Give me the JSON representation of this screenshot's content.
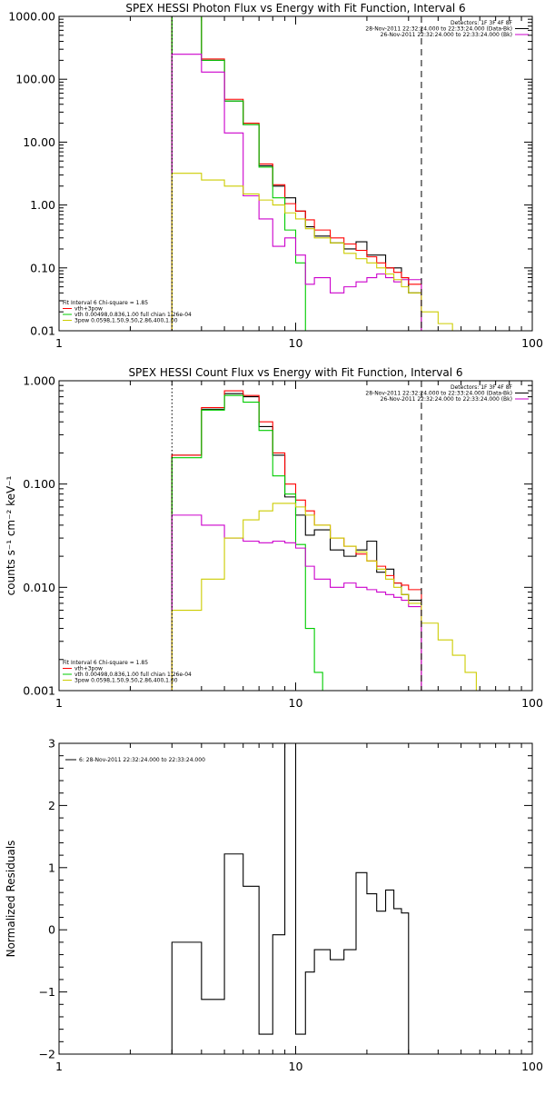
{
  "chart_data": [
    {
      "type": "line",
      "title": "SPEX HESSI Photon Flux vs Energy with Fit Function, Interval 6",
      "xscale": "log",
      "yscale": "log",
      "xlim": [
        1,
        100
      ],
      "ylim": [
        0.01,
        1000
      ],
      "xticks": [
        {
          "v": 1,
          "label": "1"
        },
        {
          "v": 10,
          "label": "10"
        },
        {
          "v": 100,
          "label": "100"
        }
      ],
      "yticks": [
        {
          "v": 0.01,
          "label": "0.01"
        },
        {
          "v": 0.1,
          "label": "0.10"
        },
        {
          "v": 1,
          "label": "1.00"
        },
        {
          "v": 10,
          "label": "10.00"
        },
        {
          "v": 100,
          "label": "100.00"
        },
        {
          "v": 1000,
          "label": "1000.00"
        }
      ],
      "vlines": [
        {
          "x": 3,
          "style": "dotted"
        },
        {
          "x": 34,
          "style": "dashed"
        }
      ],
      "legend_tr": [
        {
          "text": "Detectors: 1F 3F 4F 8F",
          "color": "",
          "line": false
        },
        {
          "text": "28-Nov-2011 22:32:24.000 to 22:33:24.000 (Data-Bk)",
          "color": "#000000",
          "line": true
        },
        {
          "text": "26-Nov-2011 22:32:24.000 to 22:33:24.000 (Bk)",
          "color": "#cc00cc",
          "line": true
        }
      ],
      "legend_bl": [
        {
          "text": "Fit Interval 6   Chi-square = 1.85",
          "color": "",
          "line": false
        },
        {
          "text": "vth+3pow",
          "color": "#ff0000",
          "line": true
        },
        {
          "text": "vth 0.00498,0.836,1.00  full chian 1.26e-04",
          "color": "#00cc00",
          "line": true
        },
        {
          "text": "3pow 0.0598,1.50,9.50,2.86,400,1.00",
          "color": "#cccc00",
          "line": true
        }
      ],
      "series": [
        {
          "color": "#000000",
          "edges": [
            3,
            4,
            5,
            6,
            7,
            8,
            9,
            10,
            11,
            12,
            14,
            16,
            18,
            20,
            22,
            24,
            26,
            28,
            30,
            34
          ],
          "values": [
            1000,
            200,
            45,
            19,
            4.2,
            2.0,
            1.3,
            0.8,
            0.45,
            0.32,
            0.25,
            0.2,
            0.26,
            0.16,
            0.16,
            0.1,
            0.1,
            0.07,
            0.04
          ]
        },
        {
          "color": "#ff0000",
          "edges": [
            3,
            4,
            5,
            6,
            7,
            8,
            9,
            10,
            11,
            12,
            14,
            16,
            18,
            20,
            22,
            24,
            26,
            28,
            30,
            34
          ],
          "values": [
            1000,
            210,
            48,
            20,
            4.5,
            2.1,
            1.05,
            0.8,
            0.58,
            0.4,
            0.3,
            0.24,
            0.19,
            0.15,
            0.12,
            0.1,
            0.085,
            0.07,
            0.055
          ]
        },
        {
          "color": "#00cc00",
          "edges": [
            3,
            4,
            5,
            6,
            7,
            8,
            9,
            10,
            11,
            12
          ],
          "values": [
            1000,
            200,
            45,
            19,
            4.0,
            1.3,
            0.4,
            0.12,
            0.01
          ]
        },
        {
          "color": "#cc00cc",
          "edges": [
            3,
            4,
            5,
            6,
            7,
            8,
            9,
            10,
            11,
            12,
            14,
            16,
            18,
            20,
            22,
            24,
            26,
            28,
            30,
            34
          ],
          "values": [
            250,
            130,
            14,
            1.4,
            0.6,
            0.22,
            0.3,
            0.16,
            0.055,
            0.07,
            0.04,
            0.05,
            0.06,
            0.07,
            0.08,
            0.07,
            0.06,
            0.065,
            0.065,
            0.006
          ]
        },
        {
          "color": "#cccc00",
          "edges": [
            3,
            4,
            5,
            6,
            7,
            8,
            9,
            10,
            11,
            12,
            14,
            16,
            18,
            20,
            22,
            24,
            26,
            28,
            30,
            34,
            40,
            46,
            50
          ],
          "values": [
            3.2,
            2.5,
            2.0,
            1.5,
            1.2,
            1.0,
            0.75,
            0.6,
            0.42,
            0.3,
            0.25,
            0.17,
            0.14,
            0.12,
            0.1,
            0.08,
            0.065,
            0.05,
            0.04,
            0.02,
            0.013,
            0.01
          ]
        }
      ]
    },
    {
      "type": "line",
      "title": "SPEX HESSI Count Flux vs Energy with Fit Function, Interval 6",
      "ylabel": "counts s⁻¹ cm⁻² keV⁻¹",
      "xscale": "log",
      "yscale": "log",
      "xlim": [
        1,
        100
      ],
      "ylim": [
        0.001,
        1
      ],
      "xticks": [
        {
          "v": 1,
          "label": "1"
        },
        {
          "v": 10,
          "label": "10"
        },
        {
          "v": 100,
          "label": "100"
        }
      ],
      "yticks": [
        {
          "v": 0.001,
          "label": "0.001"
        },
        {
          "v": 0.01,
          "label": "0.010"
        },
        {
          "v": 0.1,
          "label": "0.100"
        },
        {
          "v": 1,
          "label": "1.000"
        }
      ],
      "vlines": [
        {
          "x": 3,
          "style": "dotted"
        },
        {
          "x": 34,
          "style": "dashed"
        }
      ],
      "legend_tr": [
        {
          "text": "Detectors: 1F 3F 4F 8F",
          "color": "",
          "line": false
        },
        {
          "text": "28-Nov-2011 22:32:24.000 to 22:33:24.000 (Data-Bk)",
          "color": "#000000",
          "line": true
        },
        {
          "text": "26-Nov-2011 22:32:24.000 to 22:33:24.000 (Bk)",
          "color": "#cc00cc",
          "line": true
        }
      ],
      "legend_bl": [
        {
          "text": "Fit Interval 6   Chi-square = 1.85",
          "color": "",
          "line": false
        },
        {
          "text": "vth+3pow",
          "color": "#ff0000",
          "line": true
        },
        {
          "text": "vth 0.00498,0.836,1.00  full chian 1.26e-04",
          "color": "#00cc00",
          "line": true
        },
        {
          "text": "3pow 0.0598,1.50,9.50,2.86,400,1.00",
          "color": "#cccc00",
          "line": true
        }
      ],
      "series": [
        {
          "color": "#000000",
          "edges": [
            3,
            4,
            5,
            6,
            7,
            8,
            9,
            10,
            11,
            12,
            14,
            16,
            18,
            20,
            22,
            24,
            26,
            28,
            30,
            34
          ],
          "values": [
            0.19,
            0.53,
            0.75,
            0.7,
            0.36,
            0.19,
            0.075,
            0.05,
            0.032,
            0.036,
            0.023,
            0.02,
            0.023,
            0.028,
            0.014,
            0.015,
            0.011,
            0.0085,
            0.0075
          ]
        },
        {
          "color": "#ff0000",
          "edges": [
            3,
            4,
            5,
            6,
            7,
            8,
            9,
            10,
            11,
            12,
            14,
            16,
            18,
            20,
            22,
            24,
            26,
            28,
            30,
            34
          ],
          "values": [
            0.19,
            0.55,
            0.8,
            0.72,
            0.4,
            0.2,
            0.1,
            0.07,
            0.055,
            0.04,
            0.03,
            0.025,
            0.021,
            0.018,
            0.016,
            0.013,
            0.011,
            0.0105,
            0.0095
          ]
        },
        {
          "color": "#00cc00",
          "edges": [
            3,
            4,
            5,
            6,
            7,
            8,
            9,
            10,
            11,
            12,
            13
          ],
          "values": [
            0.18,
            0.52,
            0.72,
            0.62,
            0.33,
            0.12,
            0.08,
            0.026,
            0.004,
            0.0015
          ]
        },
        {
          "color": "#cc00cc",
          "edges": [
            3,
            4,
            5,
            6,
            7,
            8,
            9,
            10,
            11,
            12,
            14,
            16,
            18,
            20,
            22,
            24,
            26,
            28,
            30,
            34
          ],
          "values": [
            0.05,
            0.04,
            0.03,
            0.028,
            0.027,
            0.028,
            0.027,
            0.024,
            0.016,
            0.012,
            0.01,
            0.011,
            0.01,
            0.0095,
            0.009,
            0.0085,
            0.008,
            0.0075,
            0.0065,
            0.001
          ]
        },
        {
          "color": "#cccc00",
          "edges": [
            3,
            4,
            5,
            6,
            7,
            8,
            9,
            10,
            11,
            12,
            14,
            16,
            18,
            20,
            22,
            24,
            26,
            28,
            30,
            34,
            40,
            46,
            52,
            58,
            62
          ],
          "values": [
            0.006,
            0.012,
            0.03,
            0.045,
            0.055,
            0.065,
            0.065,
            0.06,
            0.05,
            0.04,
            0.03,
            0.025,
            0.022,
            0.018,
            0.015,
            0.012,
            0.01,
            0.0085,
            0.007,
            0.0045,
            0.0031,
            0.0022,
            0.0015,
            0.001
          ]
        }
      ]
    },
    {
      "type": "line",
      "ylabel": "Normalized Residuals",
      "xscale": "log",
      "yscale": "linear",
      "xlim": [
        1,
        100
      ],
      "ylim": [
        -2,
        3
      ],
      "xticks": [
        {
          "v": 1,
          "label": "1"
        },
        {
          "v": 10,
          "label": "10"
        },
        {
          "v": 100,
          "label": "100"
        }
      ],
      "yticks": [
        {
          "v": -2,
          "label": "−2"
        },
        {
          "v": -1,
          "label": "−1"
        },
        {
          "v": 0,
          "label": "0"
        },
        {
          "v": 1,
          "label": "1"
        },
        {
          "v": 2,
          "label": "2"
        },
        {
          "v": 3,
          "label": "3"
        }
      ],
      "vlines": [],
      "legend_tl": [
        {
          "text": "6: 28-Nov-2011 22:32:24.000 to 22:33:24.000",
          "color": "#000000",
          "line": true
        }
      ],
      "series": [
        {
          "color": "#000000",
          "edges": [
            3,
            4,
            5,
            6,
            7,
            8,
            9,
            10,
            11,
            12,
            14,
            16,
            18,
            20,
            22,
            24,
            26,
            28,
            30,
            34
          ],
          "values": [
            -0.2,
            -1.12,
            1.22,
            0.7,
            -1.68,
            -0.08,
            3.0,
            -1.68,
            -0.68,
            -0.32,
            -0.48,
            -0.32,
            0.92,
            0.58,
            0.3,
            0.64,
            0.34,
            0.27,
            -2.0
          ],
          "drop_to": -2.0
        }
      ]
    }
  ]
}
